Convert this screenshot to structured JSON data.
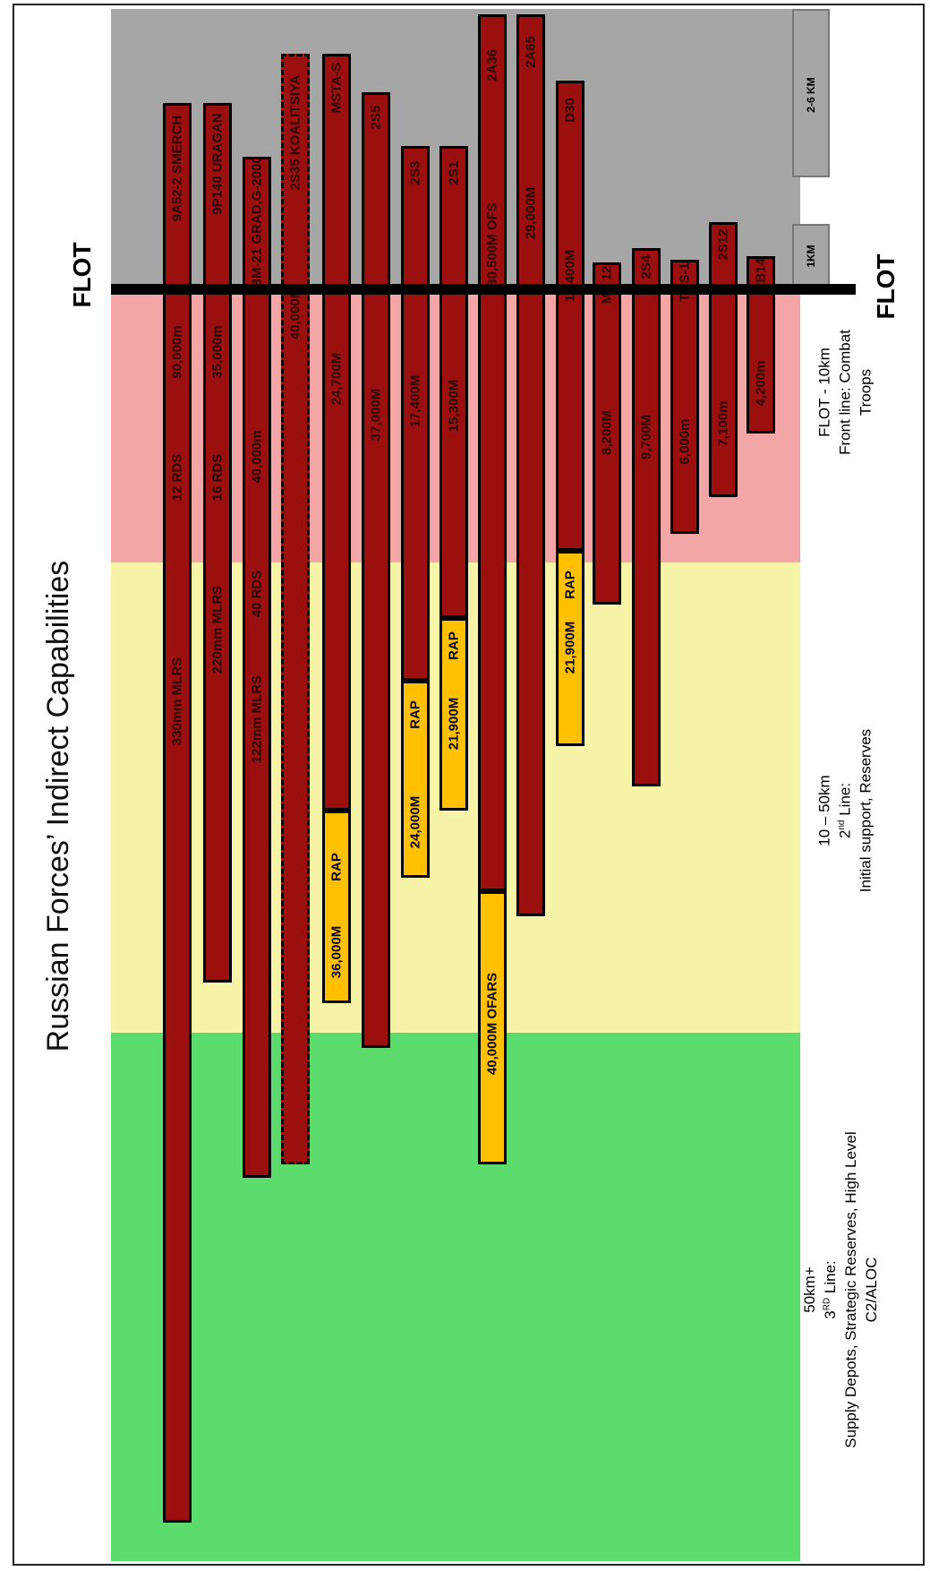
{
  "title": "Russian Forces’ Indirect Capabilities",
  "flot_label": "FLOT",
  "colors": {
    "gray_zone": "#a6a6a6",
    "front_zone": "#f4a6a6",
    "second_zone": "#f7f4a8",
    "third_zone": "#5ddc6e",
    "bar_red": "#9b0f0f",
    "bar_rap": "#ffc000"
  },
  "zones": [
    {
      "id": "front",
      "label_lines": [
        "FLOT - 10km",
        "Front line: Combat",
        "Troops"
      ]
    },
    {
      "id": "second",
      "label_lines": [
        "10 – 50km",
        "2nd Line:",
        "Initial support, Reserves"
      ]
    },
    {
      "id": "third",
      "label_lines": [
        "50km+",
        "3RD Line:",
        "Supply Depots, Strategic Reserves, High Level",
        "C2/ALOC"
      ]
    }
  ],
  "scale_boxes": [
    "2-6 KM",
    "1KM"
  ],
  "systems": [
    {
      "segments": [
        "9A52-2 SMERCH",
        "90,000m",
        "12 RDS",
        "330mm MLRS"
      ]
    },
    {
      "segments": [
        "9P140 URAGAN",
        "35,000m",
        "16 RDS",
        "220mm MLRS"
      ]
    },
    {
      "segments": [
        "BM-21 GRAD,G-2000",
        "40,000m",
        "40 RDS",
        "122mm MLRS"
      ]
    },
    {
      "segments": [
        "2S35 KOALITSIYA",
        "40,000M"
      ]
    },
    {
      "segments": [
        "MSTA-S",
        "24,700M"
      ],
      "rap": [
        "RAP",
        "36,000M"
      ]
    },
    {
      "segments": [
        "2S5",
        "37,000M"
      ]
    },
    {
      "segments": [
        "2S3",
        "17,400M"
      ],
      "rap": [
        "RAP",
        "24,000M"
      ]
    },
    {
      "segments": [
        "2S1",
        "15,300M"
      ],
      "rap": [
        "RAP",
        "21,900M"
      ]
    },
    {
      "segments": [
        "2A36",
        "30,500M OFS"
      ],
      "rap": [
        "40,000M OFARS"
      ]
    },
    {
      "segments": [
        "2A65",
        "29,000M"
      ]
    },
    {
      "segments": [
        "D30",
        "15,400M"
      ],
      "rap": [
        "RAP",
        "21,900M"
      ]
    },
    {
      "segments": [
        "MT 12",
        "8,200M"
      ]
    },
    {
      "segments": [
        "2S4",
        "9,700M"
      ]
    },
    {
      "segments": [
        "TOS-1",
        "6,000m"
      ]
    },
    {
      "segments": [
        "2S12",
        "7,100m"
      ]
    },
    {
      "segments": [
        "2B14",
        "4,200m"
      ]
    }
  ]
}
